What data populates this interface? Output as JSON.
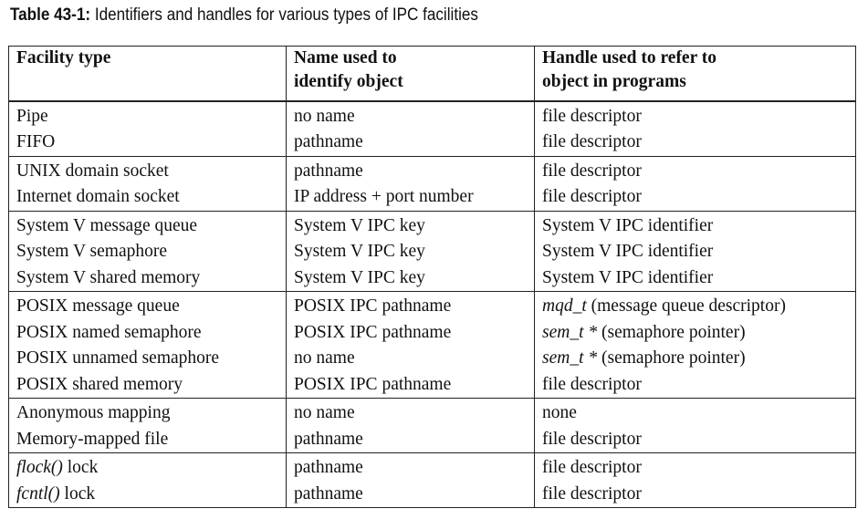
{
  "caption": {
    "label": "Table 43-1:",
    "text": "Identifiers and handles for various types of IPC facilities"
  },
  "table": {
    "headers": [
      {
        "line1": "Facility type",
        "line2": ""
      },
      {
        "line1": "Name used to",
        "line2": "identify object"
      },
      {
        "line1": "Handle used to refer to",
        "line2": "object in programs"
      }
    ],
    "groups": [
      {
        "rows": [
          {
            "facility": "Pipe",
            "name": "no name",
            "handle": "file descriptor"
          },
          {
            "facility": "FIFO",
            "name": "pathname",
            "handle": "file descriptor"
          }
        ]
      },
      {
        "rows": [
          {
            "facility": "UNIX domain socket",
            "name": "pathname",
            "handle": "file descriptor"
          },
          {
            "facility": "Internet domain socket",
            "name": "IP address + port number",
            "handle": "file descriptor"
          }
        ]
      },
      {
        "rows": [
          {
            "facility": "System V message queue",
            "name": "System V IPC key",
            "handle": "System V IPC identifier"
          },
          {
            "facility": "System V semaphore",
            "name": "System V IPC key",
            "handle": "System V IPC identifier"
          },
          {
            "facility": "System V shared memory",
            "name": "System V IPC key",
            "handle": "System V IPC identifier"
          }
        ]
      },
      {
        "rows": [
          {
            "facility": "POSIX message queue",
            "name": "POSIX IPC pathname",
            "handle_italic": "mqd_t",
            "handle": " (message queue descriptor)"
          },
          {
            "facility": "POSIX named semaphore",
            "name": "POSIX IPC pathname",
            "handle_italic": "sem_t *",
            "handle": " (semaphore pointer)"
          },
          {
            "facility": "POSIX unnamed semaphore",
            "name": "no name",
            "handle_italic": "sem_t *",
            "handle": " (semaphore pointer)"
          },
          {
            "facility": "POSIX shared memory",
            "name": "POSIX IPC pathname",
            "handle": "file descriptor"
          }
        ]
      },
      {
        "rows": [
          {
            "facility": "Anonymous mapping",
            "name": "no name",
            "handle": "none"
          },
          {
            "facility": "Memory-mapped file",
            "name": "pathname",
            "handle": "file descriptor"
          }
        ]
      },
      {
        "rows": [
          {
            "facility_italic": "flock()",
            "facility": " lock",
            "name": "pathname",
            "handle": "file descriptor"
          },
          {
            "facility_italic": "fcntl()",
            "facility": " lock",
            "name": "pathname",
            "handle": "file descriptor"
          }
        ]
      }
    ]
  }
}
